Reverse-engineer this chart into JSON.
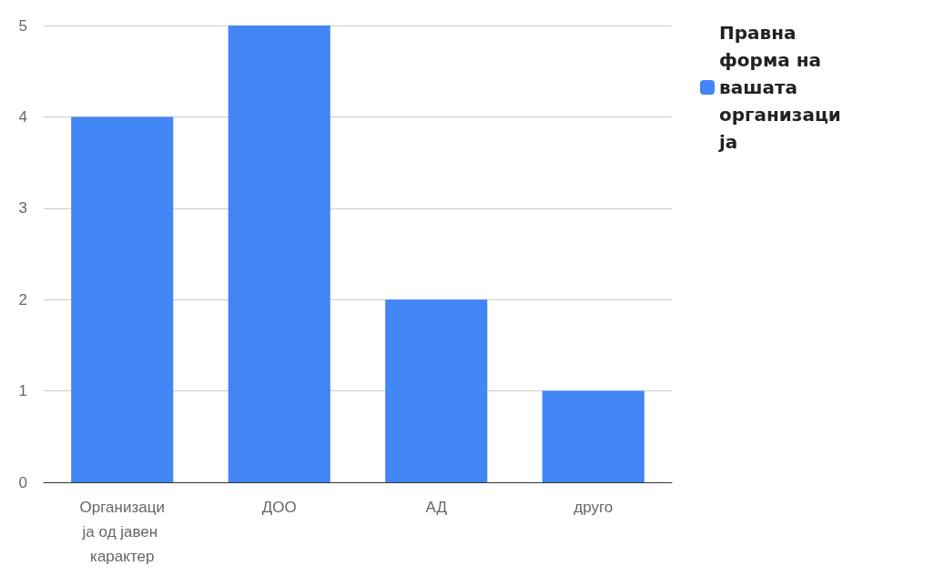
{
  "chart_data": {
    "type": "bar",
    "categories": [
      "Организација од јавен карактер",
      "ДОО",
      "АД",
      "друго"
    ],
    "series": [
      {
        "name": "Правна форма на вашата организација",
        "color": "#4285f4",
        "values": [
          4,
          5,
          2,
          1
        ]
      }
    ],
    "ylim": [
      0,
      5
    ],
    "yticks": [
      0,
      1,
      2,
      3,
      4,
      5
    ],
    "grid": "y",
    "legend": "top right"
  }
}
